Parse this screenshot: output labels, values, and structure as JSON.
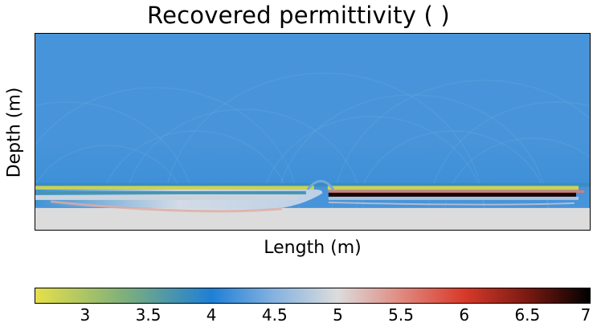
{
  "chart_data": {
    "type": "heatmap",
    "title": "Recovered permittivity ( )",
    "xlabel": "Length (m)",
    "ylabel": "Depth (m)",
    "x_ticks_shown": false,
    "y_ticks_shown": false,
    "colorbar": {
      "orientation": "horizontal",
      "placement": "bottom",
      "range": [
        2.6,
        7.0
      ],
      "ticks": [
        "3",
        "3.5",
        "4",
        "4.5",
        "5",
        "5.5",
        "6",
        "6.5",
        "7"
      ],
      "tick_values": [
        3,
        3.5,
        4,
        4.5,
        5,
        5.5,
        6,
        6.5,
        7
      ],
      "colorscale": [
        {
          "value": 2.6,
          "color": "#e6e04a"
        },
        {
          "value": 3.3,
          "color": "#7fb07a"
        },
        {
          "value": 4.0,
          "color": "#1f7fd6"
        },
        {
          "value": 4.5,
          "color": "#86b3e0"
        },
        {
          "value": 5.0,
          "color": "#dcdcdc"
        },
        {
          "value": 5.5,
          "color": "#e08a80"
        },
        {
          "value": 6.0,
          "color": "#d83a2a"
        },
        {
          "value": 6.5,
          "color": "#7a1a12"
        },
        {
          "value": 7.0,
          "color": "#000000"
        }
      ]
    },
    "field": {
      "background_value": 4.2,
      "lower_halfspace_value": 5.0,
      "interface_depth_fraction": 0.78,
      "left_layer": {
        "x_range_fraction": [
          0.0,
          0.52
        ],
        "top_band_value": 2.8,
        "lower_band_value": 4.9,
        "deep_tail_value": 5.3
      },
      "right_layer": {
        "x_range_fraction": [
          0.52,
          1.0
        ],
        "top_band_value": 2.8,
        "lower_band_value": 6.9,
        "deep_tail_value": 5.1
      }
    }
  }
}
